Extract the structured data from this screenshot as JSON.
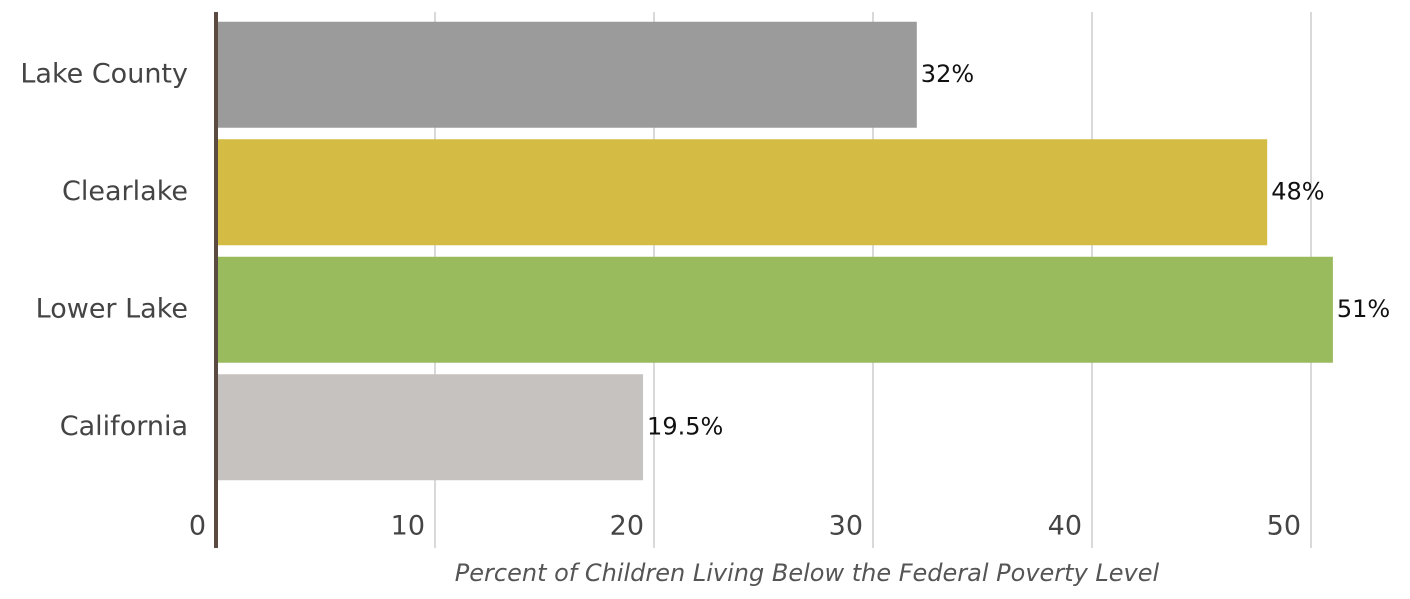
{
  "chart_data": {
    "type": "bar",
    "orientation": "horizontal",
    "x_label": "Percent of Children Living Below the Federal Poverty Level",
    "categories": [
      "Lake County",
      "Clearlake",
      "Lower Lake",
      "California"
    ],
    "values": [
      32,
      48,
      51,
      19.5
    ],
    "value_labels": [
      "32%",
      "48%",
      "51%",
      "19.5%"
    ],
    "colors": [
      "#9b9b9b",
      "#d4bb43",
      "#9aba5e",
      "#c5c2bf"
    ],
    "xlim": [
      0,
      54
    ],
    "xticks": [
      0,
      10,
      20,
      30,
      40,
      50
    ],
    "grid": true
  }
}
